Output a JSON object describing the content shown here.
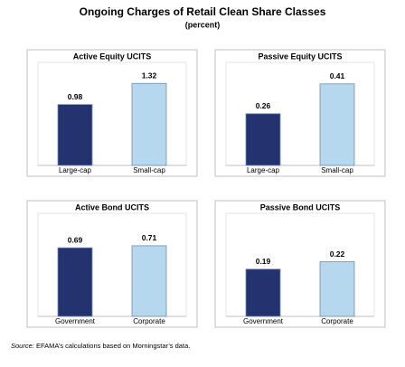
{
  "title": "Ongoing Charges of Retail Clean Share Classes",
  "subtitle": "(percent)",
  "source_label": "Source:",
  "source": "EFAMA’s calculations based on Morningstar’s data.",
  "chart_data": [
    {
      "type": "bar",
      "title": "Active Equity UCITS",
      "categories": [
        "Large-cap",
        "Small-cap"
      ],
      "values": [
        0.98,
        1.32
      ],
      "colors": [
        "#253270",
        "#b5d8ef"
      ],
      "ylim": [
        0,
        1.6
      ]
    },
    {
      "type": "bar",
      "title": "Passive Equity UCITS",
      "categories": [
        "Large-cap",
        "Small-cap"
      ],
      "values": [
        0.26,
        0.41
      ],
      "colors": [
        "#253270",
        "#b5d8ef"
      ],
      "ylim": [
        0,
        0.5
      ]
    },
    {
      "type": "bar",
      "title": "Active Bond UCITS",
      "categories": [
        "Government",
        "Corporate"
      ],
      "values": [
        0.69,
        0.71
      ],
      "colors": [
        "#253270",
        "#b5d8ef"
      ],
      "ylim": [
        0,
        1.0
      ]
    },
    {
      "type": "bar",
      "title": "Passive Bond UCITS",
      "categories": [
        "Government",
        "Corporate"
      ],
      "values": [
        0.19,
        0.22
      ],
      "colors": [
        "#253270",
        "#b5d8ef"
      ],
      "ylim": [
        0,
        0.4
      ]
    }
  ]
}
